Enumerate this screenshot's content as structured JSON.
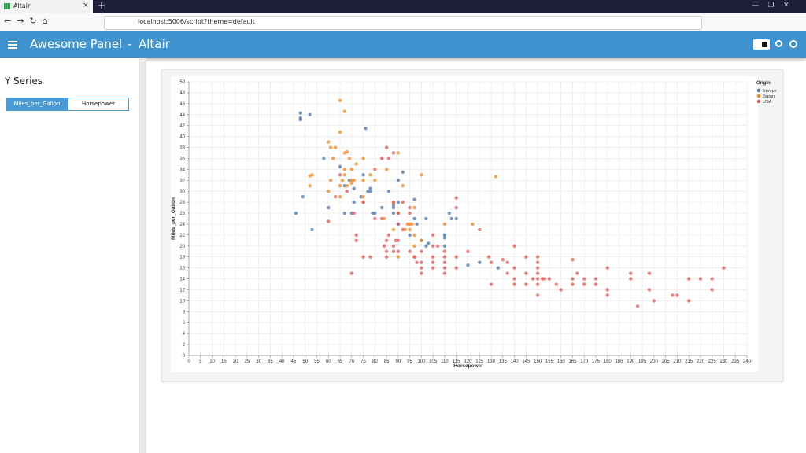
{
  "browser": {
    "tab_title": "Altair",
    "url": "localhost:5006/script?theme=default"
  },
  "header": {
    "title": "Awesome Panel",
    "separator": "-",
    "page": "Altair"
  },
  "sidebar": {
    "title": "Y Series",
    "options": [
      "Miles_per_Gallon",
      "Horsepower"
    ],
    "selected": 0
  },
  "chart_data": {
    "type": "scatter",
    "x_label": "Horsepower",
    "y_label": "Miles_per_Gallon",
    "legend_title": "Origin",
    "grid": true,
    "xlim": [
      0,
      240
    ],
    "ylim": [
      0,
      50
    ],
    "xticks": [
      0,
      5,
      10,
      15,
      20,
      25,
      30,
      35,
      40,
      45,
      50,
      55,
      60,
      65,
      70,
      75,
      80,
      85,
      90,
      95,
      100,
      105,
      110,
      115,
      120,
      125,
      130,
      135,
      140,
      145,
      150,
      155,
      160,
      165,
      170,
      175,
      180,
      185,
      190,
      195,
      200,
      205,
      210,
      215,
      220,
      225,
      230,
      235,
      240
    ],
    "yticks": [
      0,
      2,
      4,
      6,
      8,
      10,
      12,
      14,
      16,
      18,
      20,
      22,
      24,
      26,
      28,
      30,
      32,
      34,
      36,
      38,
      40,
      42,
      44,
      46,
      48,
      50
    ],
    "series": [
      {
        "name": "Europe",
        "color": "#4c78a8",
        "x": [
          46,
          48,
          48,
          48,
          49,
          52,
          53,
          58,
          60,
          67,
          67,
          69,
          70,
          71,
          74,
          75,
          76,
          77,
          78,
          79,
          80,
          83,
          86,
          88,
          88,
          90,
          90,
          92,
          95,
          97,
          98,
          102,
          103,
          110,
          110,
          112,
          113,
          115,
          120,
          125,
          133,
          78,
          97,
          100,
          71,
          90,
          65,
          88,
          102,
          110
        ],
        "values": [
          26,
          43.4,
          44.3,
          43.1,
          29,
          44,
          23,
          36,
          27,
          26,
          31,
          32,
          26,
          30.5,
          29,
          33,
          41.5,
          30,
          30.5,
          26,
          26,
          27,
          30,
          26,
          27,
          28,
          32,
          33.5,
          22,
          25,
          24,
          20,
          20.5,
          22,
          20,
          26,
          25,
          25,
          16.5,
          17,
          16,
          30,
          28.5,
          21,
          28,
          24,
          34.5,
          27.5,
          25,
          21.5
        ]
      },
      {
        "name": "Japan",
        "color": "#f58518",
        "x": [
          52,
          53,
          61,
          65,
          67,
          60,
          61,
          62,
          63,
          65,
          65,
          66,
          67,
          67,
          68,
          68,
          69,
          70,
          70,
          72,
          75,
          75,
          75,
          78,
          80,
          85,
          88,
          90,
          92,
          95,
          96,
          97,
          97,
          100,
          110,
          122,
          132,
          52,
          60,
          65,
          67,
          70,
          71,
          75,
          84,
          90,
          93,
          95,
          97,
          90,
          88,
          94,
          97,
          100
        ],
        "values": [
          32.8,
          33,
          32,
          46.6,
          44.6,
          39,
          38,
          36,
          38,
          40.8,
          31,
          32,
          37,
          34,
          37.2,
          31,
          36,
          34,
          32,
          35,
          32,
          36,
          29,
          33,
          32,
          34,
          27.9,
          37,
          31,
          24,
          24,
          22,
          27,
          33,
          24,
          24,
          32.7,
          31,
          30,
          29,
          33,
          31.5,
          32,
          28,
          25,
          18,
          23,
          23,
          20,
          26,
          23,
          24,
          18,
          21
        ]
      },
      {
        "name": "USA",
        "color": "#e45756",
        "x": [
          60,
          63,
          65,
          68,
          70,
          71,
          72,
          72,
          75,
          75,
          78,
          80,
          80,
          83,
          85,
          85,
          85,
          86,
          88,
          88,
          88,
          90,
          90,
          90,
          90,
          92,
          95,
          95,
          97,
          98,
          100,
          100,
          100,
          100,
          105,
          105,
          105,
          105,
          105,
          107,
          110,
          110,
          110,
          110,
          110,
          115,
          115,
          115,
          115,
          120,
          125,
          129,
          130,
          130,
          135,
          140,
          140,
          140,
          140,
          145,
          145,
          145,
          148,
          150,
          150,
          150,
          150,
          150,
          150,
          150,
          152,
          155,
          158,
          160,
          165,
          165,
          165,
          167,
          170,
          170,
          175,
          175,
          180,
          180,
          180,
          190,
          190,
          193,
          198,
          198,
          200,
          208,
          210,
          215,
          215,
          220,
          225,
          225,
          230,
          153,
          137,
          137,
          86,
          92,
          95,
          83,
          84,
          88,
          89,
          85
        ],
        "values": [
          24.5,
          29,
          33,
          30,
          15,
          26,
          22,
          21,
          28,
          18,
          18,
          25,
          34,
          36,
          38,
          21,
          18,
          36,
          37,
          28,
          20,
          26,
          24,
          21,
          19,
          28,
          26,
          19,
          18,
          17,
          19,
          17,
          15,
          16,
          17,
          20,
          22,
          18,
          16,
          20,
          18,
          17,
          16,
          19,
          15,
          16,
          18,
          27,
          28.8,
          19,
          23,
          18,
          13,
          17,
          17.5,
          13,
          14,
          16,
          20,
          13,
          15,
          18,
          14,
          11,
          13,
          14,
          15,
          16,
          17,
          18,
          14,
          14,
          13,
          12,
          13,
          14,
          17.5,
          15,
          13,
          14,
          13,
          14,
          11,
          12,
          16,
          14,
          15,
          9,
          12,
          15,
          10,
          11,
          11,
          10,
          14,
          14,
          12,
          14,
          16,
          14,
          17,
          15,
          22,
          23,
          27,
          25,
          20,
          19,
          21,
          19
        ]
      }
    ]
  }
}
